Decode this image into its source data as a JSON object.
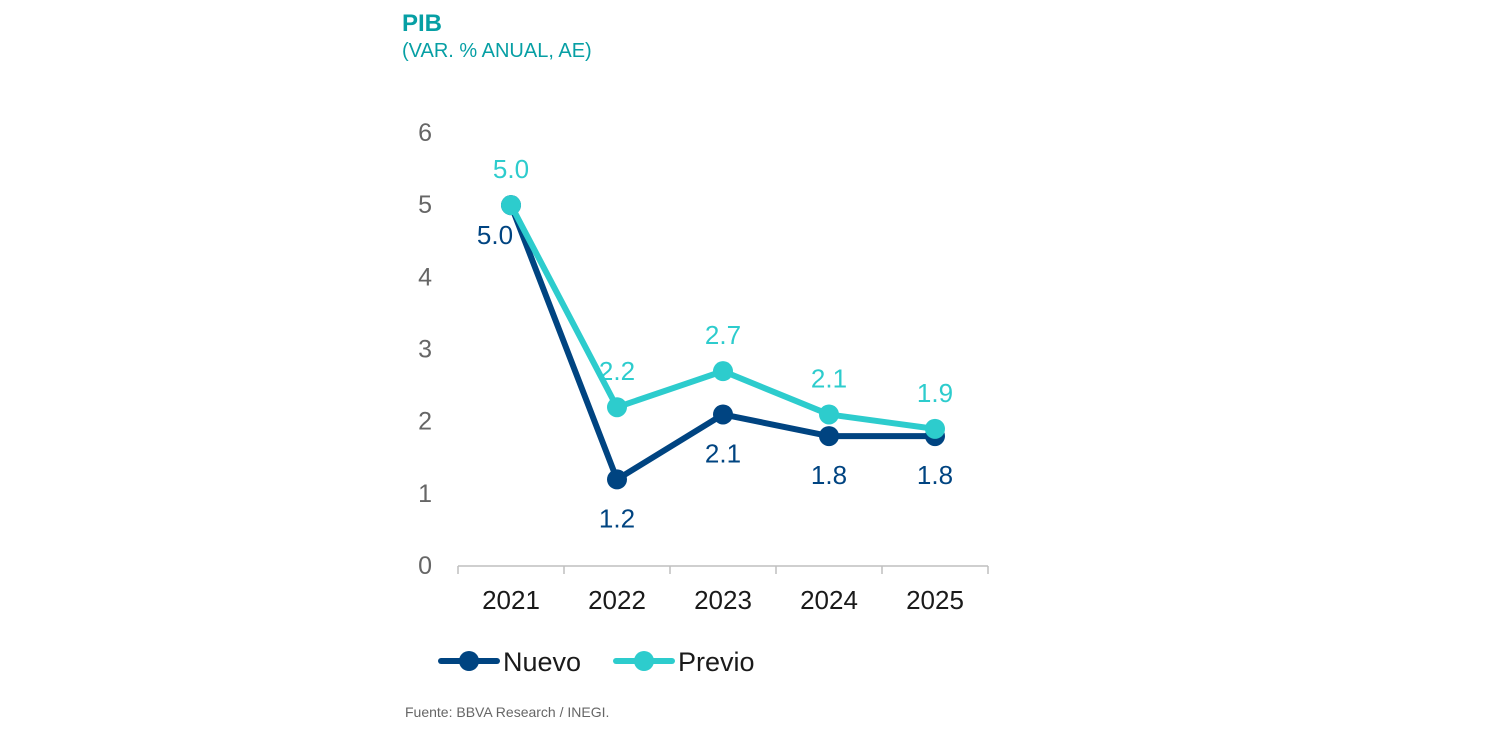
{
  "header": {
    "title": "PIB",
    "subtitle": "(VAR. % ANUAL, AE)"
  },
  "footer": {
    "source": "Fuente: BBVA Research / INEGI."
  },
  "colors": {
    "nuevo": "#004481",
    "previo": "#2dcccd",
    "axis_text": "#666666",
    "category_text": "#1a1a1a",
    "axis_line": "#bfbfbf"
  },
  "chart_data": {
    "type": "line",
    "title": "PIB",
    "subtitle": "(VAR. % ANUAL, AE)",
    "xlabel": "",
    "ylabel": "",
    "categories": [
      "2021",
      "2022",
      "2023",
      "2024",
      "2025"
    ],
    "ylim": [
      0,
      6
    ],
    "yticks": [
      0,
      1,
      2,
      3,
      4,
      5,
      6
    ],
    "grid": false,
    "legend_position": "bottom-left",
    "series": [
      {
        "name": "Nuevo",
        "values": [
          5.0,
          1.2,
          2.1,
          1.8,
          1.8
        ],
        "labels": [
          "5.0",
          "1.2",
          "2.1",
          "1.8",
          "1.8"
        ],
        "label_position": "below",
        "color": "#004481"
      },
      {
        "name": "Previo",
        "values": [
          5.0,
          2.2,
          2.7,
          2.1,
          1.9
        ],
        "labels": [
          "5.0",
          "2.2",
          "2.7",
          "2.1",
          "1.9"
        ],
        "label_position": "above",
        "color": "#2dcccd"
      }
    ]
  }
}
